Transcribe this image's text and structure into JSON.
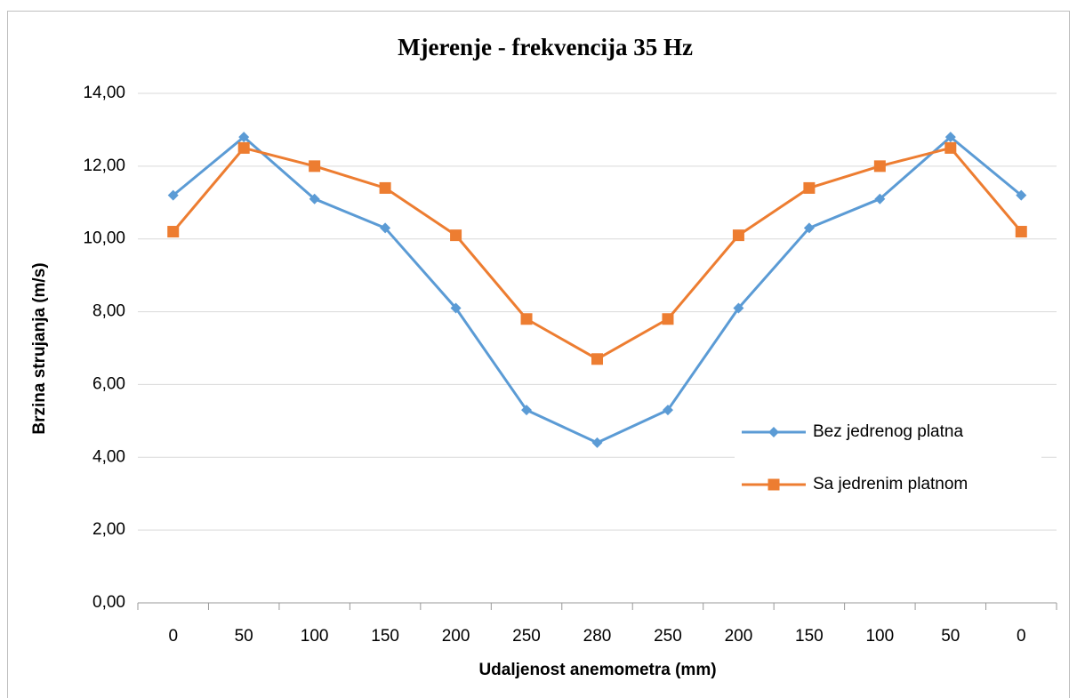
{
  "chart_data": {
    "type": "line",
    "title": "Mjerenje - frekvencija 35 Hz",
    "x_label": "Udaljenost anemometra (mm)",
    "y_label": "Brzina strujanja (m/s)",
    "categories": [
      "0",
      "50",
      "100",
      "150",
      "200",
      "250",
      "280",
      "250",
      "200",
      "150",
      "100",
      "50",
      "0"
    ],
    "series": [
      {
        "name": "Bez jedrenog platna",
        "color": "#5b9bd5",
        "marker": "diamond",
        "values": [
          11.2,
          12.8,
          11.1,
          10.3,
          8.1,
          5.3,
          4.4,
          5.3,
          8.1,
          10.3,
          11.1,
          12.8,
          11.2
        ]
      },
      {
        "name": "Sa jedrenim platnom",
        "color": "#ed7d31",
        "marker": "square",
        "values": [
          10.2,
          12.5,
          12.0,
          11.4,
          10.1,
          7.8,
          6.7,
          7.8,
          10.1,
          11.4,
          12.0,
          12.5,
          10.2
        ]
      }
    ],
    "ylim": [
      0,
      14
    ],
    "yticks": [
      {
        "value": 0,
        "label": "0,00"
      },
      {
        "value": 2,
        "label": "2,00"
      },
      {
        "value": 4,
        "label": "4,00"
      },
      {
        "value": 6,
        "label": "6,00"
      },
      {
        "value": 8,
        "label": "8,00"
      },
      {
        "value": 10,
        "label": "10,00"
      },
      {
        "value": 12,
        "label": "12,00"
      },
      {
        "value": 14,
        "label": "14,00"
      }
    ],
    "grid": true,
    "legend": "right"
  }
}
